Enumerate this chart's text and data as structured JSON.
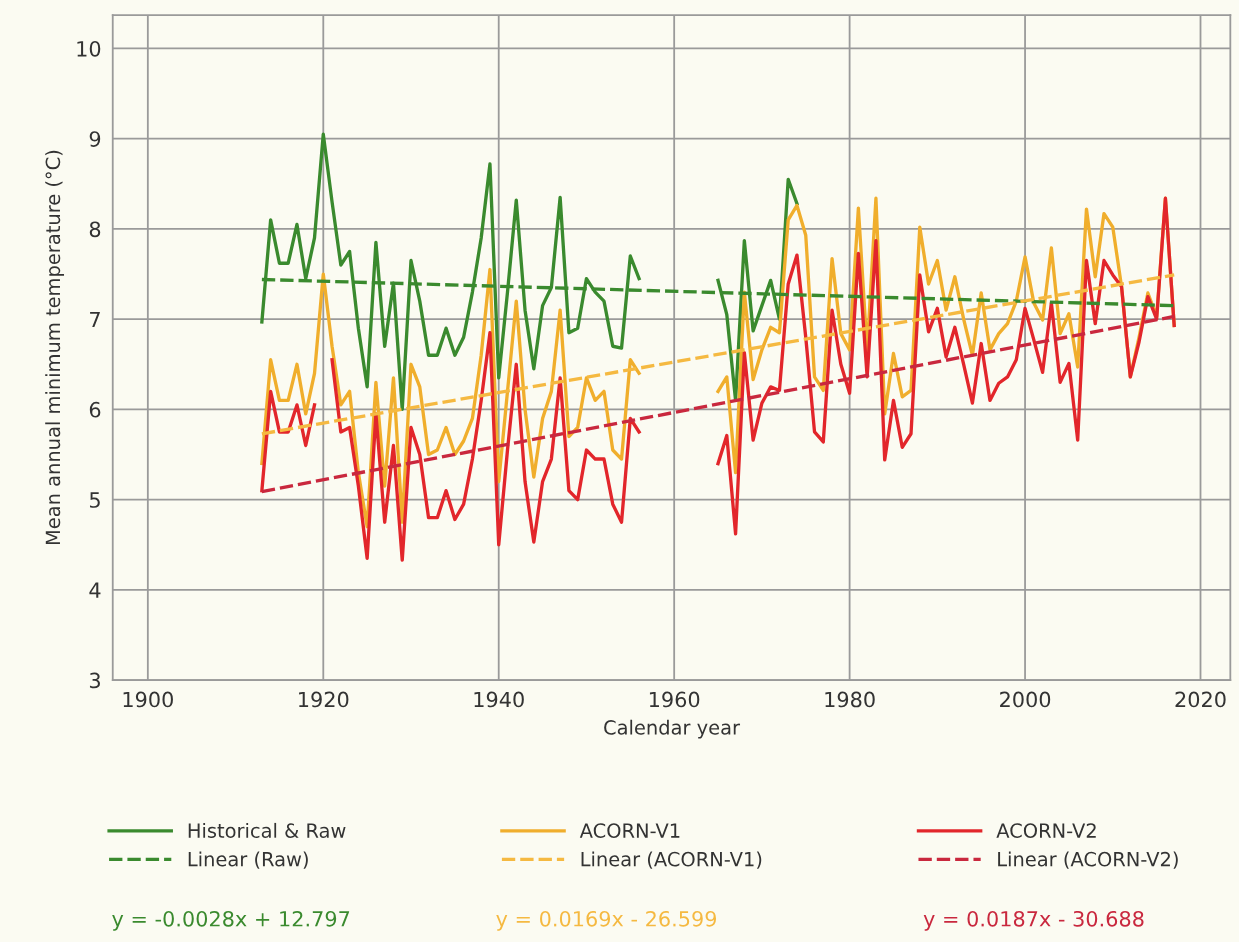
{
  "chart_data": {
    "type": "line",
    "xlabel": "Calendar year",
    "ylabel": "Mean annual minimum temperature (°C)",
    "xlim": [
      1896,
      2023.4
    ],
    "xticks": [
      1900,
      1920,
      1940,
      1960,
      1980,
      2000,
      2020
    ],
    "ylim": [
      3,
      10.37
    ],
    "yticks": [
      3,
      4,
      5,
      6,
      7,
      8,
      9,
      10
    ],
    "grid": true,
    "legend": "bottom",
    "series": [
      {
        "name": "Historical & Raw",
        "color": "#3a8a2e",
        "line_style": "solid",
        "x": [
          1913,
          1914,
          1915,
          1916,
          1917,
          1918,
          1919,
          1920,
          1921,
          1922,
          1923,
          1924,
          1925,
          1926,
          1927,
          1928,
          1929,
          1930,
          1931,
          1932,
          1933,
          1934,
          1935,
          1936,
          1937,
          1938,
          1939,
          1940,
          1941,
          1942,
          1943,
          1944,
          1945,
          1946,
          1947,
          1948,
          1949,
          1950,
          1951,
          1952,
          1953,
          1954,
          1955,
          1956,
          1960,
          1965,
          1966,
          1967,
          1968,
          1969,
          1970,
          1971,
          1972,
          1973,
          1974
        ],
        "values": [
          6.97,
          8.1,
          7.62,
          7.62,
          8.05,
          7.45,
          7.9,
          9.05,
          8.3,
          7.6,
          7.75,
          6.9,
          6.25,
          7.85,
          6.7,
          7.4,
          6.0,
          7.65,
          7.2,
          6.6,
          6.6,
          6.9,
          6.6,
          6.8,
          7.3,
          7.9,
          8.72,
          6.35,
          7.3,
          8.32,
          7.1,
          6.45,
          7.15,
          7.35,
          8.35,
          6.85,
          6.9,
          7.45,
          7.3,
          7.2,
          6.7,
          6.68,
          7.7,
          7.45,
          null,
          7.43,
          7.05,
          6.1,
          7.87,
          6.87,
          7.15,
          7.43,
          7.0,
          8.55,
          8.28
        ]
      },
      {
        "name": "Linear (Raw)",
        "color": "#3a8a2e",
        "line_style": "dashed",
        "x": [
          1913,
          2017
        ],
        "values": [
          7.44,
          7.15
        ]
      },
      {
        "name": "ACORN-V1",
        "color": "#f0ae2c",
        "line_style": "solid",
        "x": [
          1913,
          1914,
          1915,
          1916,
          1917,
          1918,
          1919,
          1920,
          1921,
          1922,
          1923,
          1924,
          1925,
          1926,
          1927,
          1928,
          1929,
          1930,
          1931,
          1932,
          1933,
          1934,
          1935,
          1936,
          1937,
          1938,
          1939,
          1940,
          1941,
          1942,
          1943,
          1944,
          1945,
          1946,
          1947,
          1948,
          1949,
          1950,
          1951,
          1952,
          1953,
          1954,
          1955,
          1956,
          1960,
          1965,
          1966,
          1967,
          1968,
          1969,
          1970,
          1971,
          1972,
          1973,
          1974,
          1975,
          1976,
          1977,
          1978,
          1979,
          1980,
          1981,
          1982,
          1983,
          1984,
          1985,
          1986,
          1987,
          1988,
          1989,
          1990,
          1991,
          1992,
          1993,
          1994,
          1995,
          1996,
          1997,
          1998,
          1999,
          2000,
          2001,
          2002,
          2003,
          2004,
          2005,
          2006,
          2007,
          2008,
          2009,
          2010,
          2011,
          2012,
          2013,
          2014,
          2015,
          2016,
          2017
        ],
        "values": [
          5.4,
          6.55,
          6.1,
          6.1,
          6.5,
          5.95,
          6.4,
          7.5,
          6.7,
          6.05,
          6.2,
          5.3,
          4.7,
          6.3,
          5.15,
          6.35,
          4.75,
          6.5,
          6.25,
          5.5,
          5.55,
          5.8,
          5.5,
          5.65,
          5.9,
          6.6,
          7.55,
          5.2,
          6.2,
          7.2,
          6.0,
          5.25,
          5.9,
          6.2,
          7.1,
          5.7,
          5.8,
          6.35,
          6.1,
          6.2,
          5.55,
          5.45,
          6.55,
          6.4,
          null,
          6.2,
          6.36,
          5.3,
          7.3,
          6.33,
          6.66,
          6.91,
          6.85,
          8.1,
          8.26,
          7.93,
          6.36,
          6.21,
          7.67,
          6.84,
          6.66,
          8.23,
          6.65,
          8.34,
          5.95,
          6.62,
          6.14,
          6.21,
          8.02,
          7.39,
          7.65,
          7.1,
          7.47,
          7.0,
          6.6,
          7.29,
          6.66,
          6.84,
          6.95,
          7.2,
          7.69,
          7.18,
          6.99,
          7.79,
          6.84,
          7.06,
          6.47,
          8.22,
          7.47,
          8.17,
          8.02,
          7.36,
          6.36,
          6.8,
          7.29,
          7.03,
          8.34,
          6.93
        ]
      },
      {
        "name": "Linear (ACORN-V1)",
        "color": "#f5b941",
        "line_style": "dashed",
        "x": [
          1913,
          2017
        ],
        "values": [
          5.73,
          7.49
        ]
      },
      {
        "name": "ACORN-V2",
        "color": "#e2262b",
        "line_style": "solid",
        "x": [
          1913,
          1914,
          1915,
          1916,
          1917,
          1918,
          1919,
          1920,
          1921,
          1922,
          1923,
          1924,
          1925,
          1926,
          1927,
          1928,
          1929,
          1930,
          1931,
          1932,
          1933,
          1934,
          1935,
          1936,
          1937,
          1938,
          1939,
          1940,
          1941,
          1942,
          1943,
          1944,
          1945,
          1946,
          1947,
          1948,
          1949,
          1950,
          1951,
          1952,
          1953,
          1954,
          1955,
          1956,
          1960,
          1965,
          1966,
          1967,
          1968,
          1969,
          1970,
          1971,
          1972,
          1973,
          1974,
          1975,
          1976,
          1977,
          1978,
          1979,
          1980,
          1981,
          1982,
          1983,
          1984,
          1985,
          1986,
          1987,
          1988,
          1989,
          1990,
          1991,
          1992,
          1993,
          1994,
          1995,
          1996,
          1997,
          1998,
          1999,
          2000,
          2001,
          2002,
          2003,
          2004,
          2005,
          2006,
          2007,
          2008,
          2009,
          2010,
          2011,
          2012,
          2013,
          2014,
          2015,
          2016,
          2017
        ],
        "values": [
          5.1,
          6.2,
          5.75,
          5.75,
          6.05,
          5.6,
          6.05,
          null,
          6.55,
          5.75,
          5.8,
          5.15,
          4.35,
          5.95,
          4.75,
          5.6,
          4.33,
          5.8,
          5.5,
          4.8,
          4.8,
          5.1,
          4.78,
          4.95,
          5.45,
          6.1,
          6.85,
          4.5,
          5.55,
          6.5,
          5.2,
          4.53,
          5.2,
          5.45,
          6.35,
          5.1,
          5.0,
          5.55,
          5.45,
          5.45,
          4.95,
          4.75,
          5.9,
          5.75,
          null,
          5.4,
          5.71,
          4.62,
          6.63,
          5.66,
          6.07,
          6.25,
          6.21,
          7.39,
          7.71,
          6.8,
          5.75,
          5.64,
          7.1,
          6.5,
          6.18,
          7.73,
          6.36,
          7.87,
          5.44,
          6.1,
          5.58,
          5.73,
          7.49,
          6.86,
          7.12,
          6.58,
          6.91,
          6.5,
          6.07,
          6.73,
          6.1,
          6.29,
          6.36,
          6.55,
          7.12,
          6.77,
          6.41,
          7.18,
          6.3,
          6.51,
          5.66,
          7.65,
          6.95,
          7.65,
          7.49,
          7.36,
          6.36,
          6.75,
          7.25,
          7.0,
          8.34,
          6.93
        ]
      },
      {
        "name": "Linear (ACORN-V2)",
        "color": "#c9283e",
        "line_style": "dashed",
        "x": [
          1913,
          2017
        ],
        "values": [
          5.09,
          7.03
        ]
      }
    ],
    "annotations": [
      "y = -0.0028x + 12.797",
      "y = 0.0169x - 26.599",
      "y = 0.0187x - 30.688"
    ]
  }
}
